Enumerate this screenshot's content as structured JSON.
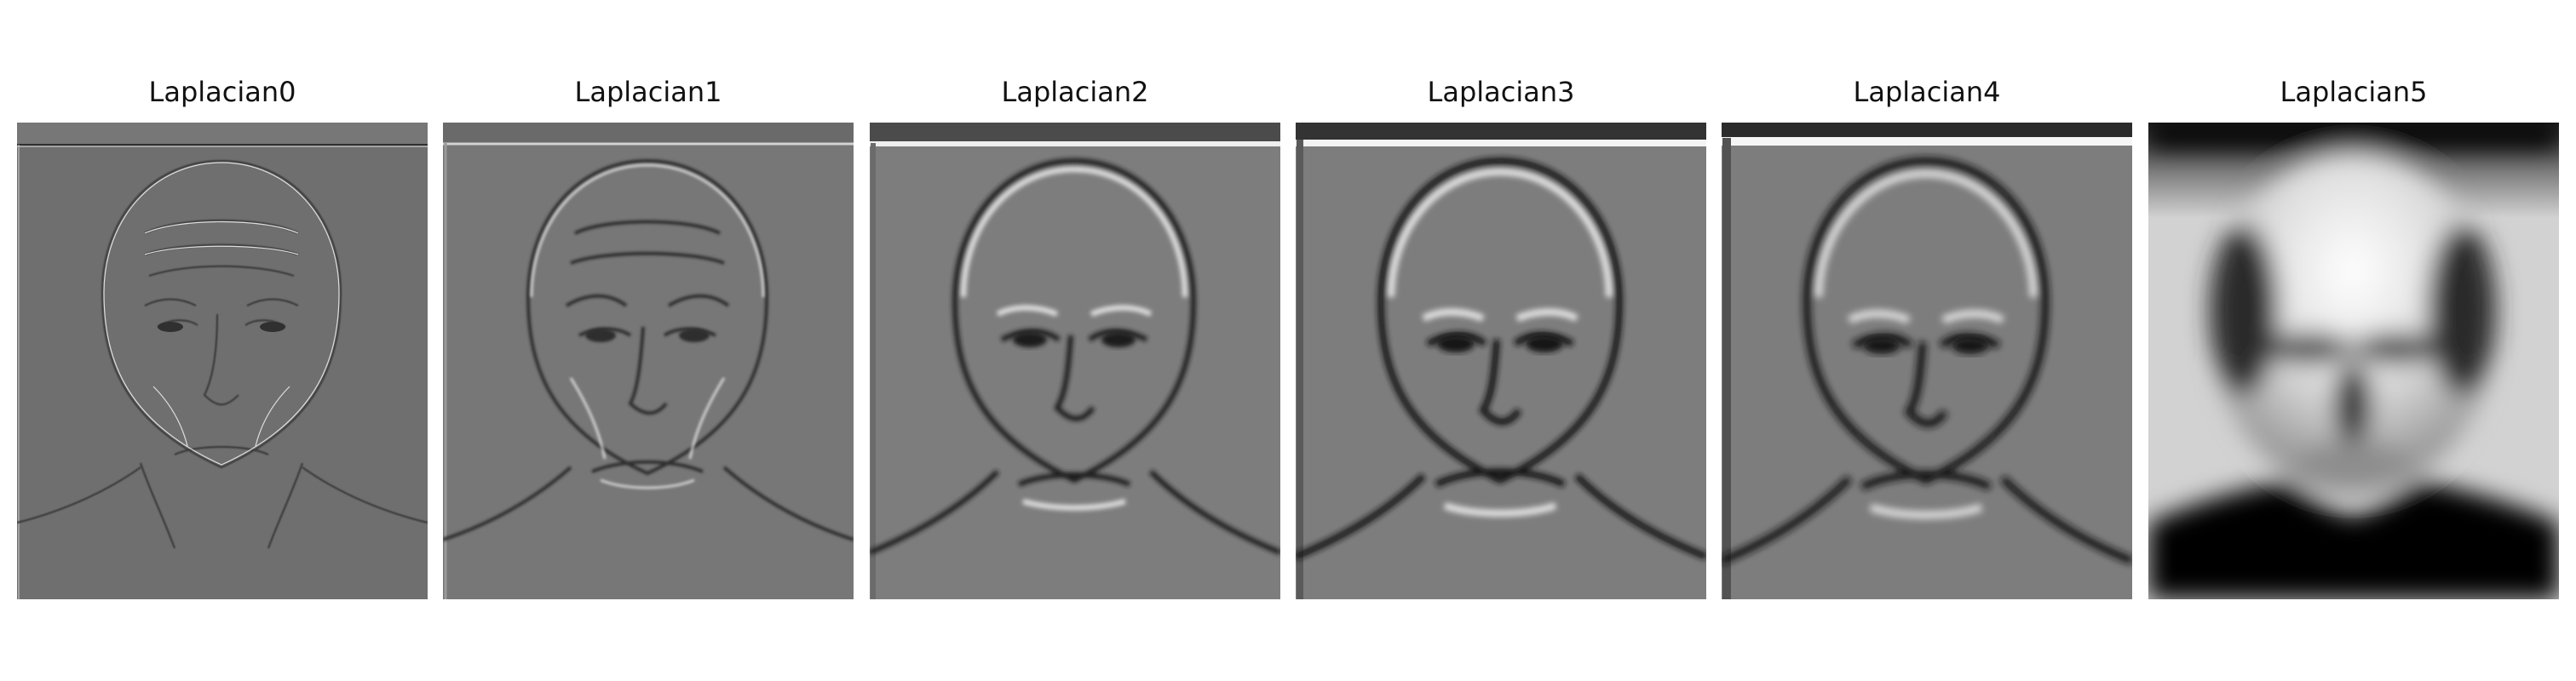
{
  "figure": {
    "panels": [
      {
        "title": "Laplacian0",
        "type": "laplacian-detail",
        "background": "#6f6f6f"
      },
      {
        "title": "Laplacian1",
        "type": "laplacian-detail",
        "background": "#777777"
      },
      {
        "title": "Laplacian2",
        "type": "laplacian-detail",
        "background": "#7d7d7d"
      },
      {
        "title": "Laplacian3",
        "type": "laplacian-detail",
        "background": "#7d7d7d"
      },
      {
        "title": "Laplacian4",
        "type": "laplacian-detail",
        "background": "#7d7d7d"
      },
      {
        "title": "Laplacian5",
        "type": "blurred-photo",
        "background": "#000000"
      }
    ]
  }
}
